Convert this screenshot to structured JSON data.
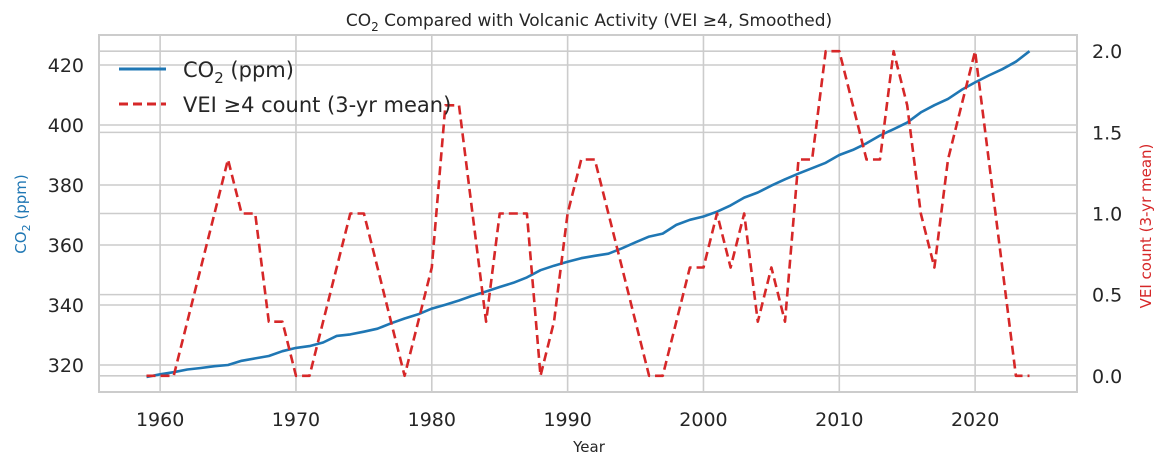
{
  "chart_data": {
    "type": "line",
    "title_main": "CO",
    "title_sub": "2",
    "title_rest": " Compared with Volcanic Activity (VEI ≥4, Smoothed)",
    "xlabel": "Year",
    "ylabel_left_main": "CO",
    "ylabel_left_sub": "2",
    "ylabel_left_rest": " (ppm)",
    "ylabel_right": "VEI count (3-yr mean)",
    "xlim": [
      1955.5,
      2027.5
    ],
    "ylim_left": [
      311,
      430
    ],
    "ylim_right": [
      -0.1,
      2.1
    ],
    "x_ticks": [
      1960,
      1970,
      1980,
      1990,
      2000,
      2010,
      2020
    ],
    "y_left_ticks": [
      320,
      340,
      360,
      380,
      400,
      420
    ],
    "y_right_ticks": [
      "0.0",
      "0.5",
      "1.0",
      "1.5",
      "2.0"
    ],
    "y_right_tick_values": [
      0,
      0.5,
      1.0,
      1.5,
      2.0
    ],
    "grid": true,
    "legend_placement": "upper-left",
    "legend": [
      {
        "main": "CO",
        "sub": "2",
        "rest": " (ppm)"
      },
      {
        "main": "VEI ≥4 count (3-yr mean)",
        "sub": "",
        "rest": ""
      }
    ],
    "colors": {
      "co2": "#1f77b4",
      "vei": "#d62728",
      "text": "#262626"
    },
    "series": [
      {
        "axis": "left",
        "style": "solid",
        "x": [
          1959,
          1960,
          1961,
          1962,
          1963,
          1964,
          1965,
          1966,
          1967,
          1968,
          1969,
          1970,
          1971,
          1972,
          1973,
          1974,
          1975,
          1976,
          1977,
          1978,
          1979,
          1980,
          1981,
          1982,
          1983,
          1984,
          1985,
          1986,
          1987,
          1988,
          1989,
          1990,
          1991,
          1992,
          1993,
          1994,
          1995,
          1996,
          1997,
          1998,
          1999,
          2000,
          2001,
          2002,
          2003,
          2004,
          2005,
          2006,
          2007,
          2008,
          2009,
          2010,
          2011,
          2012,
          2013,
          2014,
          2015,
          2016,
          2017,
          2018,
          2019,
          2020,
          2021,
          2022,
          2023,
          2024
        ],
        "values": [
          316.0,
          316.9,
          317.6,
          318.5,
          319.0,
          319.6,
          320.0,
          321.4,
          322.2,
          323.0,
          324.6,
          325.7,
          326.3,
          327.5,
          329.7,
          330.2,
          331.1,
          332.1,
          333.9,
          335.5,
          336.9,
          338.8,
          340.1,
          341.5,
          343.1,
          344.5,
          346.0,
          347.4,
          349.2,
          351.6,
          353.1,
          354.4,
          355.6,
          356.4,
          357.1,
          358.9,
          360.9,
          362.8,
          363.8,
          366.7,
          368.4,
          369.5,
          371.1,
          373.2,
          375.8,
          377.5,
          379.8,
          381.9,
          383.8,
          385.6,
          387.4,
          390.0,
          391.7,
          393.9,
          396.5,
          398.6,
          400.8,
          404.2,
          406.6,
          408.7,
          411.7,
          414.2,
          416.5,
          418.6,
          421.1,
          424.6
        ]
      },
      {
        "axis": "right",
        "style": "dashed",
        "x": [
          1959,
          1960,
          1961,
          1962,
          1963,
          1964,
          1965,
          1966,
          1967,
          1968,
          1969,
          1970,
          1971,
          1972,
          1973,
          1974,
          1975,
          1976,
          1977,
          1978,
          1979,
          1980,
          1981,
          1982,
          1983,
          1984,
          1985,
          1986,
          1987,
          1988,
          1989,
          1990,
          1991,
          1992,
          1993,
          1994,
          1995,
          1996,
          1997,
          1998,
          1999,
          2000,
          2001,
          2002,
          2003,
          2004,
          2005,
          2006,
          2007,
          2008,
          2009,
          2010,
          2011,
          2012,
          2013,
          2014,
          2015,
          2016,
          2017,
          2018,
          2019,
          2020,
          2021,
          2022,
          2023,
          2024
        ],
        "values": [
          0,
          0,
          0,
          0.333,
          0.667,
          1.0,
          1.333,
          1.0,
          1.0,
          0.333,
          0.333,
          0,
          0,
          0.333,
          0.667,
          1.0,
          1.0,
          0.667,
          0.333,
          0,
          0.333,
          0.667,
          1.667,
          1.667,
          1.0,
          0.333,
          1.0,
          1.0,
          1.0,
          0,
          0.333,
          1.0,
          1.333,
          1.333,
          1.0,
          0.667,
          0.333,
          0,
          0,
          0.333,
          0.667,
          0.667,
          1.0,
          0.667,
          1.0,
          0.333,
          0.667,
          0.333,
          1.333,
          1.333,
          2.0,
          2.0,
          1.667,
          1.333,
          1.333,
          2.0,
          1.667,
          1.0,
          0.667,
          1.333,
          1.667,
          2.0,
          1.333,
          0.667,
          0,
          0
        ]
      }
    ]
  }
}
